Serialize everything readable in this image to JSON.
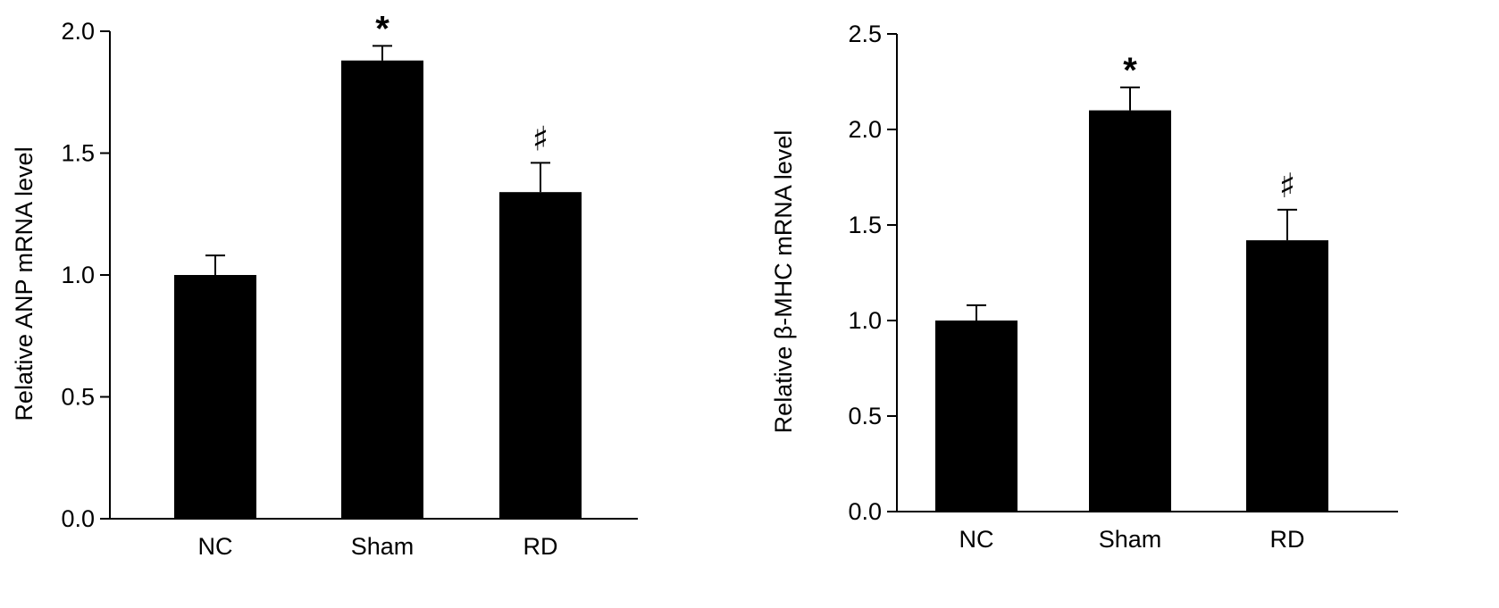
{
  "chart_data": [
    {
      "type": "bar",
      "categories": [
        "NC",
        "Sham",
        "RD"
      ],
      "values": [
        1.0,
        1.88,
        1.34
      ],
      "error": [
        0.08,
        0.06,
        0.12
      ],
      "annotations": [
        "",
        "*",
        "♯"
      ],
      "ylabel": "Relative ANP mRNA level",
      "ylim": [
        0,
        2.0
      ],
      "yticks": [
        "0.0",
        "0.5",
        "1.0",
        "1.5",
        "2.0"
      ],
      "grid": false,
      "colors": {
        "bar": "#000000",
        "axis": "#000000"
      }
    },
    {
      "type": "bar",
      "categories": [
        "NC",
        "Sham",
        "RD"
      ],
      "values": [
        1.0,
        2.1,
        1.42
      ],
      "error": [
        0.08,
        0.12,
        0.16
      ],
      "annotations": [
        "",
        "*",
        "♯"
      ],
      "ylabel": "Relative β-MHC mRNA level",
      "ylim": [
        0,
        2.5
      ],
      "yticks": [
        "0.0",
        "0.5",
        "1.0",
        "1.5",
        "2.0",
        "2.5"
      ],
      "grid": false,
      "colors": {
        "bar": "#000000",
        "axis": "#000000"
      }
    }
  ]
}
